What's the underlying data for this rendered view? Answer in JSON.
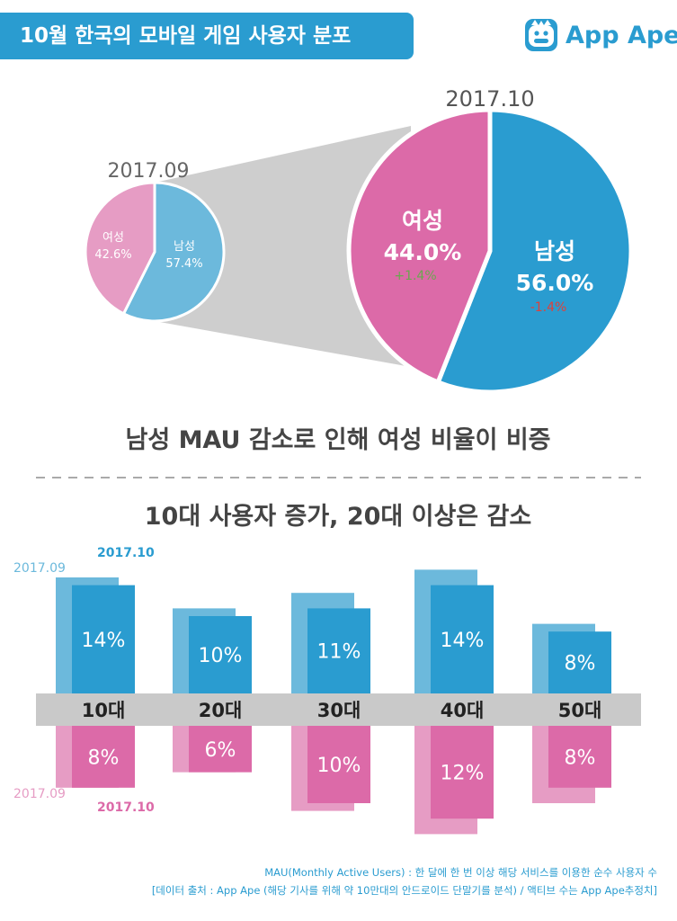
{
  "header": {
    "title": "10월 한국의 모바일 게임 사용자 분포",
    "brand_name": "App Ape",
    "brand_icon": "monkey-face-icon"
  },
  "colors": {
    "blue_dark": "#2a9cd0",
    "blue_light": "#6cb9dc",
    "pink_dark": "#dc6aa8",
    "pink_light": "#e69cc4",
    "band_gray": "#c9c9c9",
    "funnel_gray": "#cecece",
    "up_green": "#6aa84f",
    "down_red": "#e0403a"
  },
  "chart_data": [
    {
      "type": "pie",
      "title": "2017.09",
      "labels": [
        "남성",
        "여성"
      ],
      "values": [
        57.4,
        42.6
      ],
      "value_labels": [
        "57.4%",
        "42.6%"
      ]
    },
    {
      "type": "pie",
      "title": "2017.10",
      "labels": [
        "남성",
        "여성"
      ],
      "values": [
        56.0,
        44.0
      ],
      "value_labels": [
        "56.0%",
        "44.0%"
      ],
      "changes": [
        "-1.4%",
        "+1.4%"
      ]
    },
    {
      "type": "bar",
      "title": "10대 사용자 증가, 20대 이상은 감소",
      "categories": [
        "10대",
        "20대",
        "30대",
        "40대",
        "50대"
      ],
      "series_names": [
        "2017.09",
        "2017.10"
      ],
      "male": {
        "2017.09": [
          15,
          11,
          13,
          16,
          9
        ],
        "2017.10": [
          14,
          10,
          11,
          14,
          8
        ],
        "labels_2017_10": [
          "14%",
          "10%",
          "11%",
          "14%",
          "8%"
        ]
      },
      "female": {
        "2017.09": [
          8,
          6,
          11,
          14,
          10
        ],
        "2017.10": [
          8,
          6,
          10,
          12,
          8
        ],
        "labels_2017_10": [
          "8%",
          "6%",
          "10%",
          "12%",
          "8%"
        ]
      }
    }
  ],
  "headline": "남성 MAU 감소로 인해 여성 비율이 비증",
  "footer": {
    "line1": "MAU(Monthly Active Users) : 한 달에 한 번 이상 해당 서비스를 이용한 순수 사용자 수",
    "line2": "[데이터 출처 : App Ape (해당 기사를 위해 약 10만대의 안드로이드 단말기를 분석) / 액티브 수는 App Ape추정치]"
  }
}
